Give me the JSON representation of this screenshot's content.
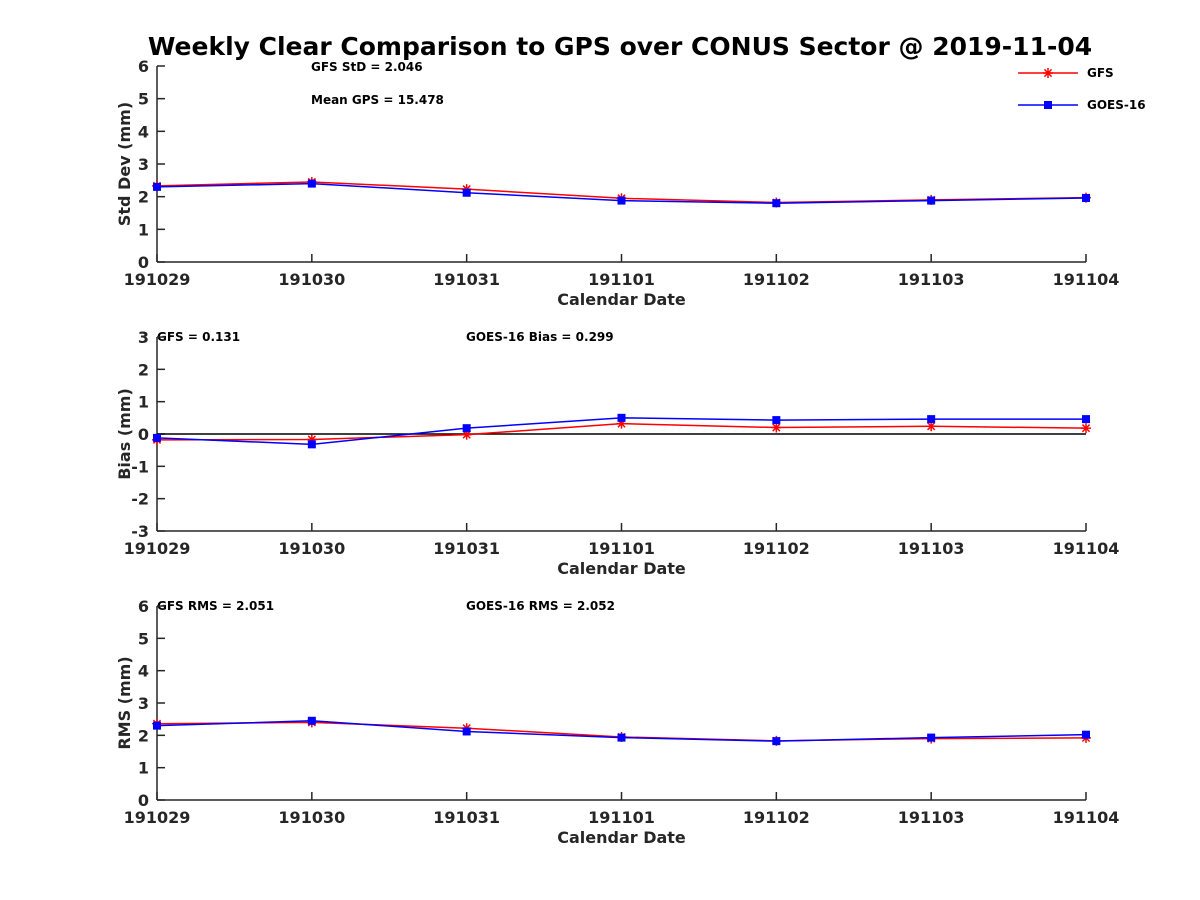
{
  "figure": {
    "title": "Weekly Clear Comparison to GPS over CONUS Sector @ 2019-11-04"
  },
  "legend": {
    "placement": "top-right",
    "entries": [
      {
        "label": "GFS",
        "color": "#ff0000",
        "marker": "asterisk"
      },
      {
        "label": "GOES-16",
        "color": "#0000ff",
        "marker": "square"
      }
    ]
  },
  "colors": {
    "gfs": "#ff0000",
    "goes": "#0000ff",
    "zero_line": "#000000",
    "axis": "#262626"
  },
  "annotations": {
    "stddev_gfs": "GFS StD = 2.046",
    "stddev_mean_gps": "Mean GPS = 15.478",
    "bias_gfs": "GFS = 0.131",
    "bias_goes": "GOES-16 Bias  = 0.299",
    "rms_gfs": "GFS RMS = 2.051",
    "rms_goes": "GOES-16 RMS = 2.052"
  },
  "chart_data": [
    {
      "type": "line",
      "title": "Weekly Clear Comparison to GPS over CONUS Sector @ 2019-11-04",
      "xlabel": "Calendar Date",
      "ylabel": "Std Dev (mm)",
      "categories": [
        "191029",
        "191030",
        "191031",
        "191101",
        "191102",
        "191103",
        "191104"
      ],
      "ylim": [
        0,
        6
      ],
      "yticks": [
        "0",
        "1",
        "2",
        "3",
        "4",
        "5",
        "6"
      ],
      "grid": false,
      "series": [
        {
          "name": "GFS",
          "values": [
            2.33,
            2.45,
            2.23,
            1.95,
            1.82,
            1.9,
            1.97
          ]
        },
        {
          "name": "GOES-16",
          "values": [
            2.3,
            2.4,
            2.12,
            1.88,
            1.8,
            1.88,
            1.96
          ]
        }
      ]
    },
    {
      "type": "line",
      "xlabel": "Calendar Date",
      "ylabel": "Bias (mm)",
      "categories": [
        "191029",
        "191030",
        "191031",
        "191101",
        "191102",
        "191103",
        "191104"
      ],
      "ylim": [
        -3,
        3
      ],
      "yticks": [
        "-3",
        "-2",
        "-1",
        "0",
        "1",
        "2",
        "3"
      ],
      "zero_line": true,
      "grid": false,
      "series": [
        {
          "name": "GFS",
          "values": [
            -0.18,
            -0.17,
            -0.02,
            0.32,
            0.2,
            0.24,
            0.18
          ]
        },
        {
          "name": "GOES-16",
          "values": [
            -0.12,
            -0.32,
            0.18,
            0.5,
            0.43,
            0.46,
            0.46
          ]
        }
      ]
    },
    {
      "type": "line",
      "xlabel": "Calendar Date",
      "ylabel": "RMS (mm)",
      "categories": [
        "191029",
        "191030",
        "191031",
        "191101",
        "191102",
        "191103",
        "191104"
      ],
      "ylim": [
        0,
        6
      ],
      "yticks": [
        "0",
        "1",
        "2",
        "3",
        "4",
        "5",
        "6"
      ],
      "grid": false,
      "series": [
        {
          "name": "GFS",
          "values": [
            2.36,
            2.4,
            2.22,
            1.95,
            1.83,
            1.9,
            1.92
          ]
        },
        {
          "name": "GOES-16",
          "values": [
            2.3,
            2.45,
            2.12,
            1.93,
            1.82,
            1.93,
            2.02
          ]
        }
      ]
    }
  ]
}
